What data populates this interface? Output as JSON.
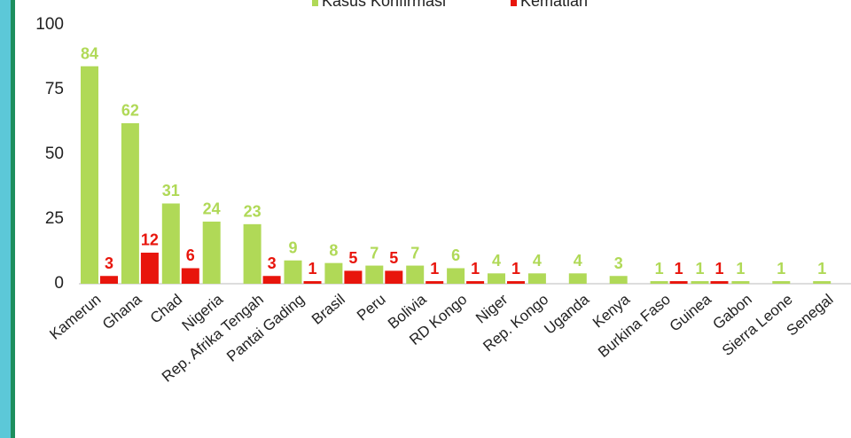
{
  "chart_data": {
    "type": "bar",
    "categories": [
      "Kamerun",
      "Ghana",
      "Chad",
      "Nigeria",
      "Rep. Afrika Tengah",
      "Pantai Gading",
      "Brasil",
      "Peru",
      "Bolivia",
      "RD Kongo",
      "Niger",
      "Rep. Kongo",
      "Uganda",
      "Kenya",
      "Burkina Faso",
      "Guinea",
      "Gabon",
      "Sierra Leone",
      "Senegal"
    ],
    "series": [
      {
        "name": "Kasus Konfirmasi",
        "color": "#b0d957",
        "values": [
          84,
          62,
          31,
          24,
          23,
          9,
          8,
          7,
          7,
          6,
          4,
          4,
          4,
          3,
          1,
          1,
          1,
          1,
          1
        ]
      },
      {
        "name": "Kematian",
        "color": "#e8150c",
        "values": [
          3,
          12,
          6,
          null,
          3,
          1,
          5,
          5,
          1,
          1,
          1,
          null,
          null,
          null,
          1,
          1,
          null,
          null,
          null
        ]
      }
    ],
    "ylim": [
      0,
      100
    ],
    "yticks": [
      0,
      25,
      50,
      75,
      100
    ],
    "legend": "top"
  }
}
